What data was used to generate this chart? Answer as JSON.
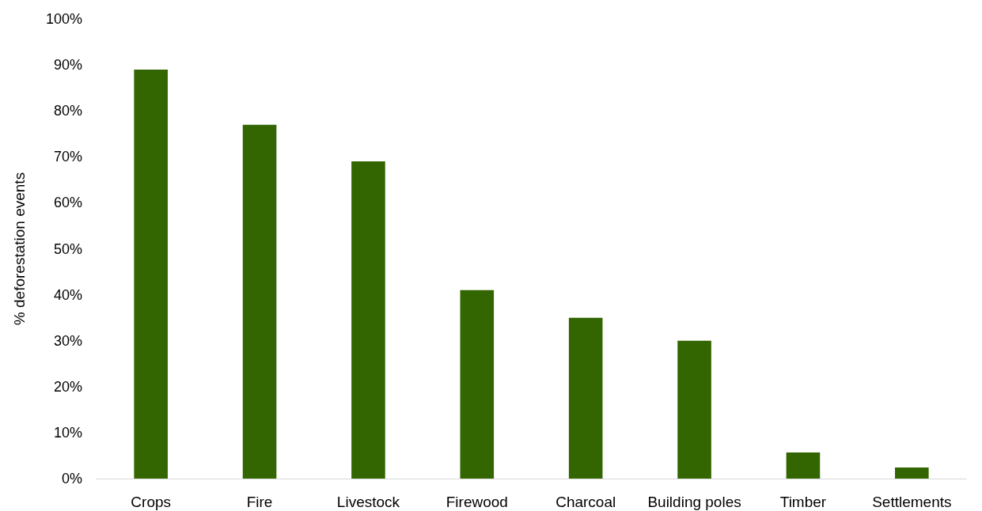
{
  "chart_data": {
    "type": "bar",
    "ylabel": "% deforestation events",
    "categories": [
      "Crops",
      "Fire",
      "Livestock",
      "Firewood",
      "Charcoal",
      "Building poles",
      "Timber",
      "Settlements"
    ],
    "series": [
      {
        "color": "#336600",
        "values": [
          89,
          77,
          69,
          41,
          35,
          30,
          5.7,
          2.4
        ]
      }
    ],
    "ylim": [
      0,
      100
    ],
    "yticks": [
      {
        "value": 0,
        "label": "0%"
      },
      {
        "value": 10,
        "label": "10%"
      },
      {
        "value": 20,
        "label": "20%"
      },
      {
        "value": 30,
        "label": "30%"
      },
      {
        "value": 40,
        "label": "40%"
      },
      {
        "value": 50,
        "label": "50%"
      },
      {
        "value": 60,
        "label": "60%"
      },
      {
        "value": 70,
        "label": "70%"
      },
      {
        "value": 80,
        "label": "80%"
      },
      {
        "value": 90,
        "label": "90%"
      },
      {
        "value": 100,
        "label": "100%"
      }
    ],
    "grid": false
  }
}
